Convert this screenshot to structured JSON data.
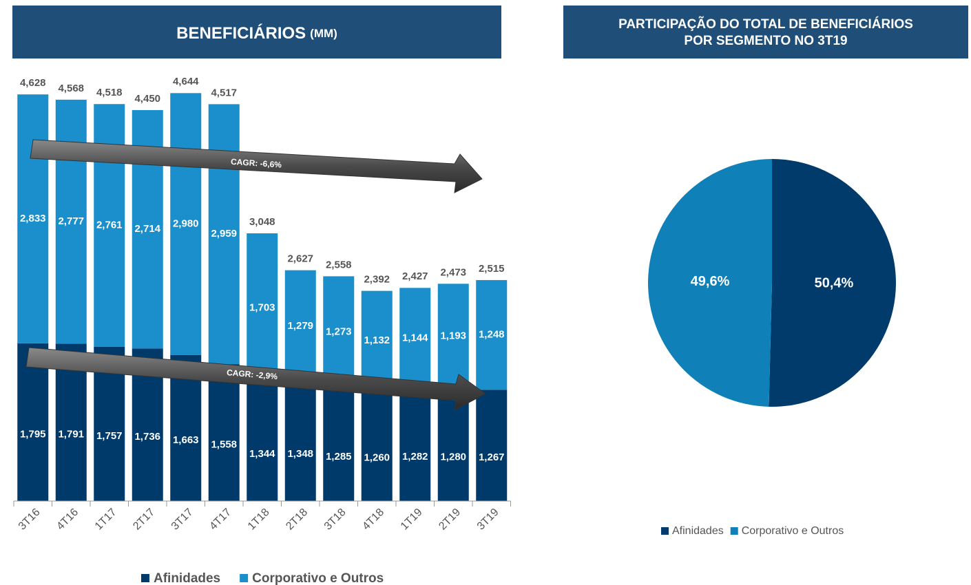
{
  "chart_data": [
    {
      "type": "stacked-bar",
      "title": "BENEFICIÁRIOS",
      "unit": "(MM)",
      "categories": [
        "3T16",
        "4T16",
        "1T17",
        "2T17",
        "3T17",
        "4T17",
        "1T18",
        "2T18",
        "3T18",
        "4T18",
        "1T19",
        "2T19",
        "3T19"
      ],
      "series": [
        {
          "name": "Afinidades",
          "color": "#003a6b",
          "values": [
            1795,
            1791,
            1757,
            1736,
            1663,
            1558,
            1344,
            1348,
            1285,
            1260,
            1282,
            1280,
            1267
          ],
          "value_labels": [
            "1,795",
            "1,791",
            "1,757",
            "1,736",
            "1,663",
            "1,558",
            "1,344",
            "1,348",
            "1,285",
            "1,260",
            "1,282",
            "1,280",
            "1,267"
          ]
        },
        {
          "name": "Corporativo e Outros",
          "color": "#1a8fcb",
          "values": [
            2833,
            2777,
            2761,
            2714,
            2980,
            2959,
            1703,
            1279,
            1273,
            1132,
            1144,
            1193,
            1248
          ],
          "value_labels": [
            "2,833",
            "2,777",
            "2,761",
            "2,714",
            "2,980",
            "2,959",
            "1,703",
            "1,279",
            "1,273",
            "1,132",
            "1,144",
            "1,193",
            "1,248"
          ]
        }
      ],
      "totals": [
        4628,
        4568,
        4518,
        4450,
        4644,
        4517,
        3048,
        2627,
        2558,
        2392,
        2427,
        2473,
        2515
      ],
      "total_labels": [
        "4,628",
        "4,568",
        "4,518",
        "4,450",
        "4,644",
        "4,517",
        "3,048",
        "2,627",
        "2,558",
        "2,392",
        "2,427",
        "2,473",
        "2,515"
      ],
      "annotations": [
        "CAGR: -6,6%",
        "CAGR: -2,9%"
      ],
      "ylim": [
        0,
        4700
      ],
      "legend": "bottom"
    },
    {
      "type": "pie",
      "title": [
        "PARTICIPAÇÃO DO TOTAL  DE BENEFICIÁRIOS",
        "POR SEGMENTO NO 3T19"
      ],
      "categories": [
        "Afinidades",
        "Corporativo e Outros"
      ],
      "values": [
        50.4,
        49.6
      ],
      "value_labels": [
        "50,4%",
        "49,6%"
      ],
      "colors": [
        "#003b6b",
        "#0f80b8"
      ],
      "legend": "bottom"
    }
  ]
}
